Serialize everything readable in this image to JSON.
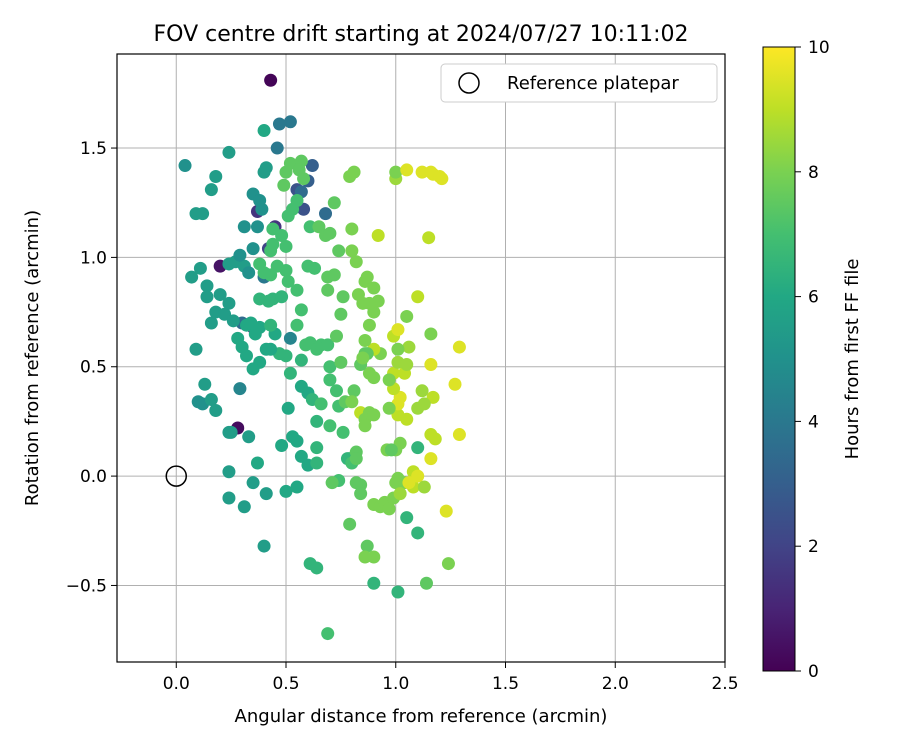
{
  "chart_data": {
    "type": "scatter",
    "title": "FOV centre drift starting at 2024/07/27 10:11:02",
    "xlabel": "Angular distance from reference (arcmin)",
    "ylabel": "Rotation from reference (arcmin)",
    "xlim": [
      -0.27,
      2.5
    ],
    "ylim": [
      -0.85,
      1.93
    ],
    "xticks": [
      0.0,
      0.5,
      1.0,
      1.5,
      2.0,
      2.5
    ],
    "xtick_labels": [
      "0.0",
      "0.5",
      "1.0",
      "1.5",
      "2.0",
      "2.5"
    ],
    "yticks": [
      -0.5,
      0.0,
      0.5,
      1.0,
      1.5
    ],
    "ytick_labels": [
      "−0.5",
      "0.0",
      "0.5",
      "1.0",
      "1.5"
    ],
    "grid": true,
    "legend": {
      "placement": "top-right",
      "entries": [
        "Reference platepar"
      ]
    },
    "reference_point": {
      "x": 0.0,
      "y": 0.0,
      "label": "Reference platepar"
    },
    "colorbar": {
      "label": "Hours from first FF file",
      "range": [
        0,
        10
      ],
      "ticks": [
        0,
        2,
        4,
        6,
        8,
        10
      ],
      "tick_labels": [
        "0",
        "2",
        "4",
        "6",
        "8",
        "10"
      ],
      "colormap": "viridis"
    },
    "points": [
      [
        0.43,
        1.81,
        0.1
      ],
      [
        0.28,
        0.22,
        0.3
      ],
      [
        0.37,
        1.21,
        1.5
      ],
      [
        0.45,
        1.14,
        1.5
      ],
      [
        0.58,
        1.22,
        2.5
      ],
      [
        0.62,
        1.42,
        3.0
      ],
      [
        0.2,
        0.96,
        0.5
      ],
      [
        0.35,
        0.68,
        1.0
      ],
      [
        0.42,
        1.04,
        2.0
      ],
      [
        0.55,
        1.31,
        2.5
      ],
      [
        0.68,
        1.2,
        3.5
      ],
      [
        0.6,
        1.35,
        3.0
      ],
      [
        0.3,
        0.7,
        3.5
      ],
      [
        0.46,
        1.5,
        4.0
      ],
      [
        0.47,
        1.61,
        4.0
      ],
      [
        0.52,
        1.62,
        4.0
      ],
      [
        0.57,
        1.3,
        3.5
      ],
      [
        0.4,
        0.91,
        4.0
      ],
      [
        0.29,
        0.4,
        4.5
      ],
      [
        0.52,
        0.63,
        4.5
      ],
      [
        0.04,
        1.42,
        5.0
      ],
      [
        0.09,
        1.2,
        5.5
      ],
      [
        0.12,
        1.2,
        5.5
      ],
      [
        0.16,
        1.31,
        5.5
      ],
      [
        0.18,
        1.37,
        5.5
      ],
      [
        0.24,
        1.48,
        5.5
      ],
      [
        0.1,
        0.34,
        5.0
      ],
      [
        0.12,
        0.33,
        5.0
      ],
      [
        0.09,
        0.58,
        5.5
      ],
      [
        0.07,
        0.91,
        5.5
      ],
      [
        0.11,
        0.95,
        5.5
      ],
      [
        0.14,
        0.87,
        5.5
      ],
      [
        0.14,
        0.82,
        5.5
      ],
      [
        0.16,
        0.7,
        5.5
      ],
      [
        0.18,
        0.75,
        5.5
      ],
      [
        0.2,
        0.83,
        5.5
      ],
      [
        0.22,
        0.74,
        5.5
      ],
      [
        0.24,
        0.79,
        5.5
      ],
      [
        0.26,
        0.71,
        5.5
      ],
      [
        0.24,
        0.97,
        5.5
      ],
      [
        0.27,
        0.98,
        5.5
      ],
      [
        0.31,
        0.96,
        5.5
      ],
      [
        0.33,
        0.93,
        5.0
      ],
      [
        0.29,
        1.01,
        5.0
      ],
      [
        0.31,
        1.14,
        5.0
      ],
      [
        0.35,
        1.04,
        5.0
      ],
      [
        0.37,
        1.14,
        5.0
      ],
      [
        0.39,
        1.22,
        5.0
      ],
      [
        0.35,
        1.29,
        5.0
      ],
      [
        0.38,
        1.26,
        5.0
      ],
      [
        0.4,
        1.39,
        5.5
      ],
      [
        0.41,
        1.41,
        5.5
      ],
      [
        0.4,
        1.58,
        6.0
      ],
      [
        0.13,
        0.42,
        5.5
      ],
      [
        0.16,
        0.35,
        5.5
      ],
      [
        0.18,
        0.3,
        5.5
      ],
      [
        0.24,
        0.2,
        5.5
      ],
      [
        0.25,
        0.2,
        5.5
      ],
      [
        0.33,
        0.18,
        5.5
      ],
      [
        0.24,
        0.02,
        5.5
      ],
      [
        0.24,
        -0.1,
        5.5
      ],
      [
        0.31,
        -0.14,
        5.5
      ],
      [
        0.35,
        -0.03,
        5.5
      ],
      [
        0.41,
        -0.08,
        5.5
      ],
      [
        0.4,
        -0.32,
        5.5
      ],
      [
        0.37,
        0.06,
        6.0
      ],
      [
        0.5,
        -0.07,
        6.0
      ],
      [
        0.48,
        0.14,
        6.0
      ],
      [
        0.53,
        0.18,
        6.0
      ],
      [
        0.55,
        0.16,
        6.0
      ],
      [
        0.57,
        0.09,
        6.0
      ],
      [
        0.51,
        0.31,
        6.0
      ],
      [
        0.57,
        0.41,
        6.0
      ],
      [
        0.6,
        0.38,
        6.0
      ],
      [
        0.62,
        0.35,
        6.5
      ],
      [
        0.64,
        0.25,
        6.5
      ],
      [
        0.6,
        0.05,
        6.0
      ],
      [
        0.55,
        -0.05,
        6.0
      ],
      [
        0.64,
        0.06,
        6.5
      ],
      [
        0.64,
        0.13,
        6.5
      ],
      [
        0.61,
        -0.4,
        6.5
      ],
      [
        0.64,
        -0.42,
        6.5
      ],
      [
        0.57,
        0.53,
        6.5
      ],
      [
        0.5,
        0.55,
        6.5
      ],
      [
        0.52,
        0.47,
        6.5
      ],
      [
        0.47,
        0.56,
        6.5
      ],
      [
        0.45,
        0.65,
        6.0
      ],
      [
        0.43,
        0.58,
        6.0
      ],
      [
        0.41,
        0.58,
        6.0
      ],
      [
        0.38,
        0.52,
        6.0
      ],
      [
        0.35,
        0.49,
        6.0
      ],
      [
        0.32,
        0.55,
        6.0
      ],
      [
        0.3,
        0.59,
        6.0
      ],
      [
        0.28,
        0.63,
        6.0
      ],
      [
        0.32,
        0.69,
        6.0
      ],
      [
        0.34,
        0.7,
        6.0
      ],
      [
        0.36,
        0.65,
        6.0
      ],
      [
        0.38,
        0.68,
        6.0
      ],
      [
        0.43,
        0.69,
        6.5
      ],
      [
        0.44,
        0.81,
        6.5
      ],
      [
        0.42,
        0.8,
        6.5
      ],
      [
        0.38,
        0.81,
        6.5
      ],
      [
        0.48,
        0.82,
        6.5
      ],
      [
        0.51,
        0.89,
        7.0
      ],
      [
        0.5,
        0.94,
        7.0
      ],
      [
        0.46,
        0.96,
        7.0
      ],
      [
        0.43,
        0.92,
        7.0
      ],
      [
        0.4,
        0.93,
        7.0
      ],
      [
        0.38,
        0.97,
        7.0
      ],
      [
        0.43,
        1.03,
        7.0
      ],
      [
        0.44,
        1.06,
        7.0
      ],
      [
        0.44,
        1.13,
        7.0
      ],
      [
        0.48,
        1.1,
        7.0
      ],
      [
        0.5,
        1.05,
        7.0
      ],
      [
        0.51,
        1.19,
        7.0
      ],
      [
        0.53,
        1.22,
        7.0
      ],
      [
        0.49,
        1.33,
        7.5
      ],
      [
        0.5,
        1.39,
        7.5
      ],
      [
        0.52,
        1.43,
        7.5
      ],
      [
        0.57,
        1.44,
        7.5
      ],
      [
        0.56,
        1.4,
        7.5
      ],
      [
        0.58,
        1.36,
        7.5
      ],
      [
        0.55,
        1.26,
        7.0
      ],
      [
        0.61,
        1.14,
        7.0
      ],
      [
        0.65,
        1.14,
        7.5
      ],
      [
        0.68,
        1.1,
        7.5
      ],
      [
        0.7,
        1.11,
        7.5
      ],
      [
        0.72,
        1.25,
        7.5
      ],
      [
        0.74,
        1.03,
        7.5
      ],
      [
        0.6,
        0.96,
        7.0
      ],
      [
        0.63,
        0.95,
        7.0
      ],
      [
        0.55,
        0.85,
        7.0
      ],
      [
        0.57,
        0.76,
        7.0
      ],
      [
        0.55,
        0.69,
        7.0
      ],
      [
        0.59,
        0.6,
        7.0
      ],
      [
        0.61,
        0.61,
        7.0
      ],
      [
        0.64,
        0.58,
        7.0
      ],
      [
        0.66,
        0.6,
        7.0
      ],
      [
        0.69,
        0.6,
        7.0
      ],
      [
        0.7,
        0.5,
        7.0
      ],
      [
        0.7,
        0.44,
        7.0
      ],
      [
        0.73,
        0.39,
        7.0
      ],
      [
        0.74,
        0.32,
        7.0
      ],
      [
        0.7,
        0.23,
        7.0
      ],
      [
        0.66,
        0.33,
        7.0
      ],
      [
        0.69,
        0.85,
        7.5
      ],
      [
        0.69,
        0.91,
        7.5
      ],
      [
        0.72,
        0.92,
        7.5
      ],
      [
        0.76,
        0.82,
        7.5
      ],
      [
        0.75,
        0.74,
        7.5
      ],
      [
        0.73,
        0.64,
        7.5
      ],
      [
        0.75,
        0.52,
        7.5
      ],
      [
        0.77,
        0.34,
        7.5
      ],
      [
        0.81,
        0.39,
        7.5
      ],
      [
        0.76,
        0.2,
        7.0
      ],
      [
        0.79,
        0.08,
        7.0
      ],
      [
        0.78,
        0.08,
        6.5
      ],
      [
        0.8,
        0.06,
        7.0
      ],
      [
        0.82,
        0.11,
        7.5
      ],
      [
        0.84,
        -0.04,
        7.5
      ],
      [
        0.79,
        -0.22,
        7.5
      ],
      [
        0.87,
        -0.32,
        7.5
      ],
      [
        0.84,
        -0.08,
        7.5
      ],
      [
        0.82,
        -0.03,
        7.5
      ],
      [
        0.74,
        -0.02,
        7.0
      ],
      [
        0.71,
        -0.03,
        7.5
      ],
      [
        0.69,
        -0.72,
        7.0
      ],
      [
        0.9,
        -0.49,
        6.5
      ],
      [
        1.01,
        -0.53,
        6.5
      ],
      [
        0.9,
        -0.37,
        8.0
      ],
      [
        0.86,
        -0.37,
        8.0
      ],
      [
        0.9,
        -0.13,
        8.0
      ],
      [
        0.93,
        -0.14,
        8.0
      ],
      [
        0.95,
        -0.12,
        8.0
      ],
      [
        0.97,
        -0.15,
        8.0
      ],
      [
        0.99,
        -0.1,
        8.0
      ],
      [
        1.0,
        -0.03,
        8.0
      ],
      [
        1.01,
        -0.01,
        8.0
      ],
      [
        1.04,
        -0.03,
        8.0
      ],
      [
        1.02,
        -0.08,
        8.5
      ],
      [
        1.05,
        -0.19,
        6.5
      ],
      [
        1.1,
        -0.26,
        6.5
      ],
      [
        1.14,
        -0.49,
        7.5
      ],
      [
        1.24,
        -0.4,
        8.0
      ],
      [
        1.23,
        -0.16,
        9.5
      ],
      [
        1.0,
        0.12,
        8.0
      ],
      [
        1.02,
        0.15,
        8.0
      ],
      [
        0.96,
        0.12,
        8.0
      ],
      [
        0.98,
        0.12,
        7.5
      ],
      [
        1.1,
        0.13,
        6.5
      ],
      [
        1.08,
        0.02,
        9.0
      ],
      [
        1.08,
        -0.05,
        9.0
      ],
      [
        1.06,
        -0.03,
        9.5
      ],
      [
        1.1,
        0.0,
        9.5
      ],
      [
        1.13,
        -0.05,
        8.5
      ],
      [
        1.16,
        0.08,
        9.5
      ],
      [
        1.16,
        0.19,
        9.0
      ],
      [
        1.18,
        0.17,
        9.0
      ],
      [
        1.29,
        0.19,
        9.5
      ],
      [
        1.27,
        0.42,
        9.5
      ],
      [
        1.17,
        0.36,
        9.0
      ],
      [
        1.13,
        0.33,
        8.5
      ],
      [
        1.12,
        0.39,
        8.5
      ],
      [
        1.1,
        0.31,
        8.5
      ],
      [
        1.05,
        0.26,
        9.0
      ],
      [
        1.01,
        0.28,
        9.0
      ],
      [
        0.99,
        0.31,
        9.0
      ],
      [
        1.01,
        0.33,
        9.5
      ],
      [
        1.02,
        0.36,
        9.5
      ],
      [
        0.99,
        0.4,
        9.0
      ],
      [
        0.99,
        0.47,
        9.0
      ],
      [
        1.01,
        0.52,
        8.5
      ],
      [
        1.04,
        0.47,
        9.0
      ],
      [
        1.05,
        0.51,
        8.5
      ],
      [
        1.06,
        0.59,
        8.5
      ],
      [
        1.01,
        0.58,
        8.0
      ],
      [
        0.99,
        0.64,
        9.0
      ],
      [
        1.01,
        0.67,
        9.5
      ],
      [
        1.05,
        0.73,
        8.0
      ],
      [
        1.16,
        0.65,
        8.0
      ],
      [
        1.16,
        0.51,
        9.5
      ],
      [
        1.29,
        0.59,
        9.5
      ],
      [
        1.1,
        0.82,
        9.0
      ],
      [
        0.93,
        0.56,
        8.0
      ],
      [
        0.9,
        0.58,
        9.0
      ],
      [
        0.88,
        0.47,
        8.0
      ],
      [
        0.9,
        0.45,
        8.0
      ],
      [
        0.86,
        0.62,
        8.0
      ],
      [
        0.88,
        0.69,
        8.0
      ],
      [
        0.9,
        0.75,
        8.0
      ],
      [
        0.92,
        0.8,
        8.0
      ],
      [
        0.88,
        0.79,
        8.0
      ],
      [
        0.85,
        0.79,
        8.0
      ],
      [
        0.83,
        0.83,
        8.0
      ],
      [
        0.86,
        0.89,
        8.0
      ],
      [
        0.87,
        0.91,
        8.0
      ],
      [
        0.9,
        0.86,
        8.0
      ],
      [
        0.82,
        0.98,
        8.0
      ],
      [
        0.8,
        1.03,
        8.0
      ],
      [
        0.8,
        1.13,
        8.0
      ],
      [
        0.79,
        1.37,
        8.0
      ],
      [
        0.81,
        1.39,
        8.0
      ],
      [
        0.92,
        1.1,
        9.0
      ],
      [
        1.0,
        1.36,
        8.5
      ],
      [
        1.0,
        1.39,
        8.0
      ],
      [
        1.05,
        1.4,
        9.5
      ],
      [
        1.12,
        1.39,
        9.5
      ],
      [
        1.17,
        1.38,
        9.5
      ],
      [
        1.16,
        1.39,
        9.5
      ],
      [
        1.2,
        1.37,
        9.5
      ],
      [
        1.21,
        1.36,
        9.5
      ],
      [
        1.15,
        1.09,
        9.0
      ],
      [
        0.84,
        0.51,
        7.5
      ],
      [
        0.86,
        0.56,
        7.5
      ],
      [
        0.84,
        0.29,
        9.0
      ],
      [
        0.86,
        0.26,
        8.0
      ],
      [
        0.88,
        0.29,
        8.0
      ],
      [
        0.9,
        0.28,
        8.0
      ],
      [
        0.86,
        0.23,
        8.0
      ],
      [
        0.8,
        0.34,
        8.0
      ],
      [
        0.97,
        0.31,
        8.0
      ],
      [
        0.97,
        0.44,
        8.0
      ],
      [
        0.87,
        0.56,
        7.5
      ],
      [
        0.85,
        0.54,
        8.0
      ],
      [
        0.82,
        0.08,
        7.5
      ]
    ]
  }
}
